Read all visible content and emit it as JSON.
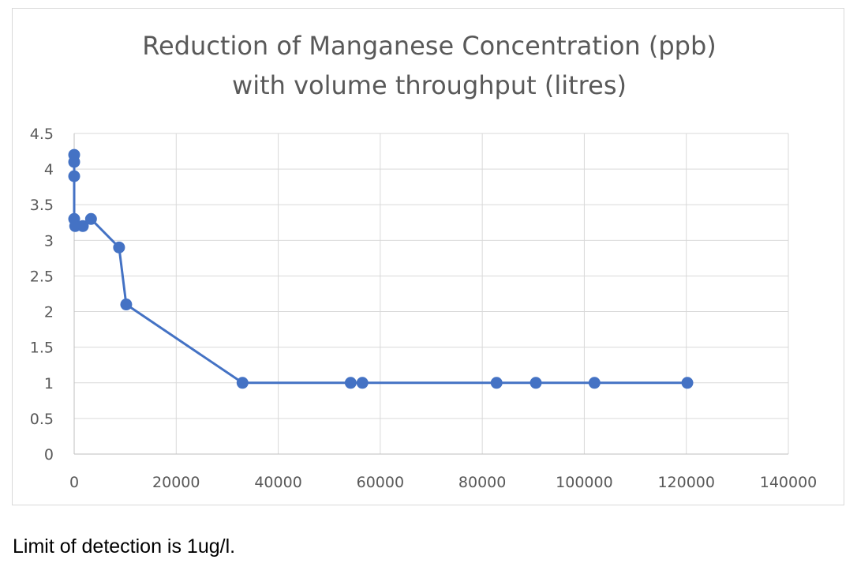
{
  "chart_data": {
    "type": "scatter",
    "title": "Reduction of Manganese Concentration (ppb) with volume throughput (litres)",
    "title_lines": [
      "Reduction of Manganese Concentration (ppb)",
      "with volume throughput (litres)"
    ],
    "xlabel": "",
    "ylabel": "",
    "xlim": [
      0,
      140000
    ],
    "ylim": [
      0,
      4.5
    ],
    "x_ticks": [
      0,
      20000,
      40000,
      60000,
      80000,
      100000,
      120000,
      140000
    ],
    "y_ticks": [
      0,
      0.5,
      1,
      1.5,
      2,
      2.5,
      3,
      3.5,
      4,
      4.5
    ],
    "x_tick_labels": [
      "0",
      "20000",
      "40000",
      "60000",
      "80000",
      "100000",
      "120000",
      "140000"
    ],
    "y_tick_labels": [
      "0",
      "0.5",
      "1",
      "1.5",
      "2",
      "2.5",
      "3",
      "3.5",
      "4",
      "4.5"
    ],
    "grid": true,
    "legend": "none",
    "series": [
      {
        "connected": true,
        "color": "#4472c4",
        "points": [
          {
            "x": 0,
            "y": 4.2
          },
          {
            "x": 0,
            "y": 4.1
          },
          {
            "x": 0,
            "y": 3.9
          },
          {
            "x": 0,
            "y": 3.3
          },
          {
            "x": 200,
            "y": 3.2
          },
          {
            "x": 1700,
            "y": 3.2
          },
          {
            "x": 3300,
            "y": 3.3
          },
          {
            "x": 8800,
            "y": 2.9
          },
          {
            "x": 10200,
            "y": 2.1
          },
          {
            "x": 33000,
            "y": 1
          },
          {
            "x": 54200,
            "y": 1
          },
          {
            "x": 56500,
            "y": 1
          },
          {
            "x": 82800,
            "y": 1
          },
          {
            "x": 90500,
            "y": 1
          },
          {
            "x": 102000,
            "y": 1
          },
          {
            "x": 120200,
            "y": 1
          }
        ]
      }
    ]
  },
  "footnote": "Limit of detection is 1ug/l."
}
